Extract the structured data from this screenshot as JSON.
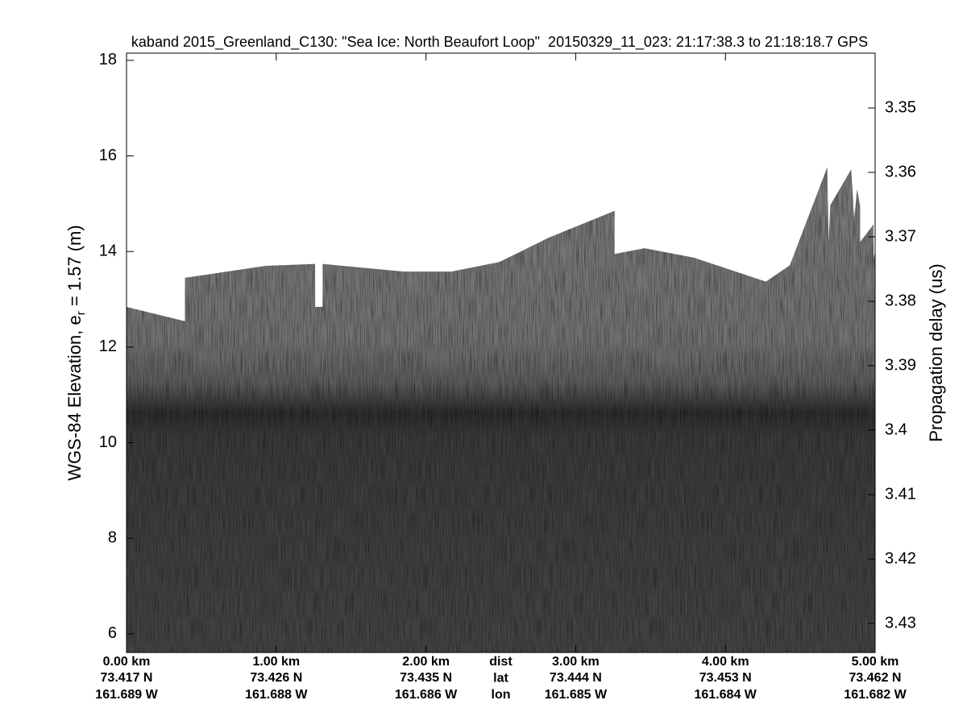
{
  "chart_data": {
    "type": "echogram",
    "title": "kaband 2015_Greenland_C130: \"Sea Ice: North Beaufort Loop\"  20150329_11_023: 21:17:38.3 to 21:18:18.7 GPS",
    "ylabel": {
      "text": "WGS-84 Elevation, e",
      "sub": "r",
      "rest": " = 1.57 (m)"
    },
    "y2label": "Propagation delay (us)",
    "xlim": [
      0,
      5.0
    ],
    "xticks": [
      {
        "value": 0,
        "label": "0.00 km"
      },
      {
        "value": 1,
        "label": "1.00 km"
      },
      {
        "value": 2,
        "label": "2.00 km"
      },
      {
        "value": 3,
        "label": "3.00 km"
      },
      {
        "value": 4,
        "label": "4.00 km"
      },
      {
        "value": 5,
        "label": "5.00 km"
      }
    ],
    "x_lat": [
      "73.417 N",
      "73.426 N",
      "73.435 N",
      "73.444 N",
      "73.453 N",
      "73.462 N"
    ],
    "x_lon": [
      "161.689 W",
      "161.688 W",
      "161.686 W",
      "161.685 W",
      "161.684 W",
      "161.682 W"
    ],
    "row_labels": [
      "dist",
      "lat",
      "lon"
    ],
    "ylim": [
      5.61,
      18.15
    ],
    "yticks": [
      6,
      8,
      10,
      12,
      14,
      16,
      18
    ],
    "y2lim": [
      3.4345,
      3.3415
    ],
    "y2ticks": [
      3.35,
      3.36,
      3.37,
      3.38,
      3.39,
      3.4,
      3.41,
      3.42,
      3.43
    ],
    "surface": {
      "x": [
        0,
        0.39,
        0.39,
        0.93,
        1.26,
        1.26,
        1.31,
        1.31,
        1.85,
        2.17,
        2.49,
        2.82,
        3.26,
        3.26,
        3.46,
        3.79,
        4.27,
        4.43,
        4.68,
        4.69,
        4.7,
        4.84,
        4.86,
        4.88,
        4.9,
        4.9,
        4.99,
        4.99,
        5.0
      ],
      "y": [
        12.84,
        12.54,
        13.45,
        13.7,
        13.74,
        12.84,
        12.84,
        13.74,
        13.58,
        13.58,
        13.78,
        14.29,
        14.85,
        13.95,
        14.07,
        13.87,
        13.37,
        13.71,
        15.76,
        14.21,
        14.97,
        15.72,
        14.7,
        15.3,
        14.95,
        14.2,
        14.57,
        13.86,
        14.0
      ]
    }
  }
}
